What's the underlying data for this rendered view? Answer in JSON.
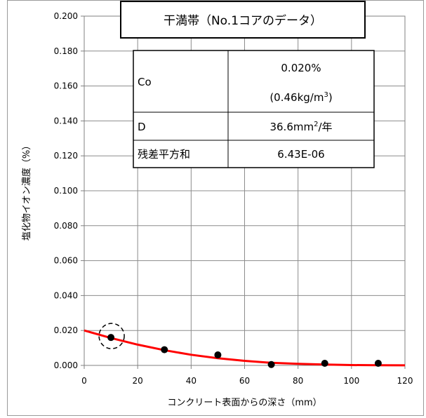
{
  "chart_data": {
    "type": "scatter",
    "title": "干満帯（No.1コアのデータ）",
    "xlabel": "コンクリート表面からの深さ（mm）",
    "ylabel": "塩化物イオン濃度（%）",
    "xlim": [
      0,
      120
    ],
    "ylim": [
      0,
      0.2
    ],
    "x_ticks": [
      "0",
      "20",
      "40",
      "60",
      "80",
      "100",
      "120"
    ],
    "y_ticks": [
      "0.000",
      "0.020",
      "0.040",
      "0.060",
      "0.080",
      "0.100",
      "0.120",
      "0.140",
      "0.160",
      "0.180",
      "0.200"
    ],
    "grid": true,
    "series": [
      {
        "type": "scatter",
        "color": "#000000",
        "x": [
          10,
          30,
          50,
          70,
          90,
          110
        ],
        "y": [
          0.016,
          0.009,
          0.006,
          0.0005,
          0.0012,
          0.0012
        ]
      },
      {
        "type": "line",
        "color": "#ff0000",
        "x": [
          0,
          10,
          20,
          30,
          40,
          50,
          60,
          70,
          80,
          90,
          100,
          110,
          120
        ],
        "y": [
          0.02,
          0.0157,
          0.0119,
          0.0087,
          0.0061,
          0.0041,
          0.0026,
          0.0015,
          0.0009,
          0.0005,
          0.0002,
          0.0001,
          5e-05
        ]
      }
    ],
    "annotations": [
      {
        "type": "dashed-circle",
        "x": 10,
        "y": 0.016
      }
    ],
    "table": [
      {
        "label": "Co",
        "value": "0.020%",
        "value2_prefix": "(0.46kg/m",
        "value2_sup": "3",
        "value2_suffix": ")"
      },
      {
        "label": "D",
        "value_prefix": "36.6mm",
        "value_sup": "2",
        "value_suffix": "/年"
      },
      {
        "label": "残差平方和",
        "value": "6.43E-06"
      }
    ]
  }
}
